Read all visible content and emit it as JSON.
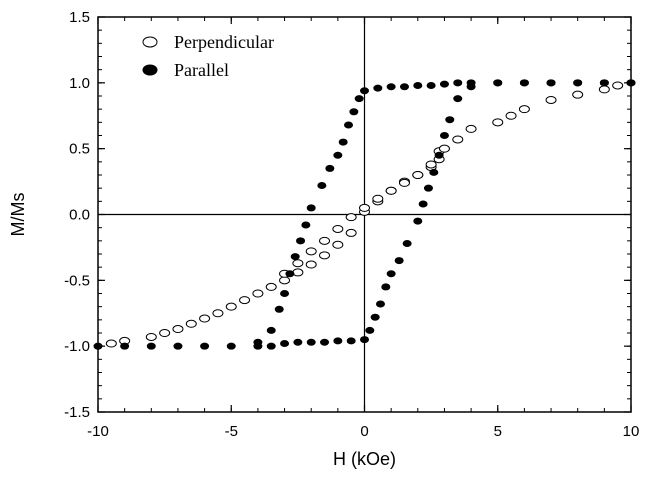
{
  "chart_data": {
    "type": "scatter",
    "xlabel": "H (kOe)",
    "ylabel": "M/Ms",
    "xlim": [
      -10,
      10
    ],
    "ylim": [
      -1.5,
      1.5
    ],
    "x_ticks": [
      -10,
      -5,
      0,
      5,
      10
    ],
    "y_ticks": [
      -1.5,
      -1.0,
      -0.5,
      0.0,
      0.5,
      1.0,
      1.5
    ],
    "x_tick_labels": [
      "-10",
      "-5",
      "0",
      "5",
      "10"
    ],
    "y_tick_labels": [
      "-1.5",
      "-1.0",
      "-0.5",
      "0.0",
      "0.5",
      "1.0",
      "1.5"
    ],
    "reference_lines": {
      "x": 0,
      "y": 0
    },
    "grid": false,
    "legend_position": "top-left",
    "series": [
      {
        "name": "Perpendicular",
        "marker": "open-circle",
        "color": "#000000",
        "branches": [
          {
            "x": [
              -9.5,
              -9.0,
              -8.0,
              -7.5,
              -7.0,
              -6.5,
              -6.0,
              -5.5,
              -5.0,
              -4.5,
              -4.0,
              -3.5,
              -3.0,
              -2.5,
              -2.0,
              -1.5,
              -1.0,
              -0.5,
              0.0,
              0.5,
              1.0,
              1.5,
              2.0,
              2.5,
              2.8
            ],
            "y": [
              -0.98,
              -0.96,
              -0.93,
              -0.9,
              -0.87,
              -0.83,
              -0.79,
              -0.75,
              -0.7,
              -0.65,
              -0.6,
              -0.55,
              -0.5,
              -0.44,
              -0.38,
              -0.31,
              -0.23,
              -0.14,
              0.02,
              0.1,
              0.18,
              0.25,
              0.3,
              0.36,
              0.42
            ]
          },
          {
            "x": [
              -3.0,
              -2.5,
              -2.0,
              -1.5,
              -1.0,
              -0.5,
              0.0,
              0.5,
              1.0,
              1.5,
              2.0,
              2.5,
              2.8,
              3.0,
              3.5,
              4.0,
              5.0,
              5.5,
              6.0,
              7.0,
              8.0,
              9.0,
              9.5
            ],
            "y": [
              -0.45,
              -0.37,
              -0.28,
              -0.2,
              -0.11,
              -0.02,
              0.05,
              0.12,
              0.18,
              0.24,
              0.3,
              0.38,
              0.48,
              0.5,
              0.57,
              0.65,
              0.7,
              0.75,
              0.8,
              0.87,
              0.91,
              0.95,
              0.98
            ]
          }
        ]
      },
      {
        "name": "Parallel",
        "marker": "filled-circle",
        "color": "#000000",
        "branches": [
          {
            "x": [
              -10.0,
              -9.0,
              -8.0,
              -7.0,
              -6.0,
              -5.0,
              -4.0,
              -3.5,
              -3.0,
              -2.5,
              -2.0,
              -1.5,
              -1.0,
              -0.5,
              0.0,
              0.2,
              0.4,
              0.6,
              0.8,
              1.0,
              1.3,
              1.6,
              2.0,
              2.2,
              2.4,
              2.6,
              2.8,
              3.0,
              3.2,
              3.5,
              4.0,
              5.0,
              6.0,
              7.0,
              8.0,
              9.0,
              10.0
            ],
            "y": [
              -1.0,
              -1.0,
              -1.0,
              -1.0,
              -1.0,
              -1.0,
              -1.0,
              -1.0,
              -0.98,
              -0.97,
              -0.97,
              -0.97,
              -0.96,
              -0.96,
              -0.95,
              -0.88,
              -0.78,
              -0.68,
              -0.55,
              -0.45,
              -0.35,
              -0.22,
              -0.05,
              0.08,
              0.2,
              0.32,
              0.45,
              0.6,
              0.72,
              0.88,
              0.97,
              1.0,
              1.0,
              1.0,
              1.0,
              1.0,
              1.0
            ]
          },
          {
            "x": [
              10.0,
              9.0,
              8.0,
              7.0,
              6.0,
              5.0,
              4.0,
              3.5,
              3.0,
              2.5,
              2.0,
              1.5,
              1.0,
              0.5,
              0.0,
              -0.2,
              -0.4,
              -0.6,
              -0.8,
              -1.0,
              -1.3,
              -1.6,
              -2.0,
              -2.2,
              -2.4,
              -2.6,
              -2.8,
              -3.0,
              -3.2,
              -3.5,
              -4.0
            ],
            "y": [
              1.0,
              1.0,
              1.0,
              1.0,
              1.0,
              1.0,
              1.0,
              1.0,
              0.99,
              0.98,
              0.98,
              0.97,
              0.97,
              0.96,
              0.94,
              0.88,
              0.78,
              0.68,
              0.55,
              0.45,
              0.35,
              0.22,
              0.05,
              -0.08,
              -0.2,
              -0.32,
              -0.45,
              -0.6,
              -0.72,
              -0.88,
              -0.97
            ]
          }
        ]
      }
    ]
  }
}
